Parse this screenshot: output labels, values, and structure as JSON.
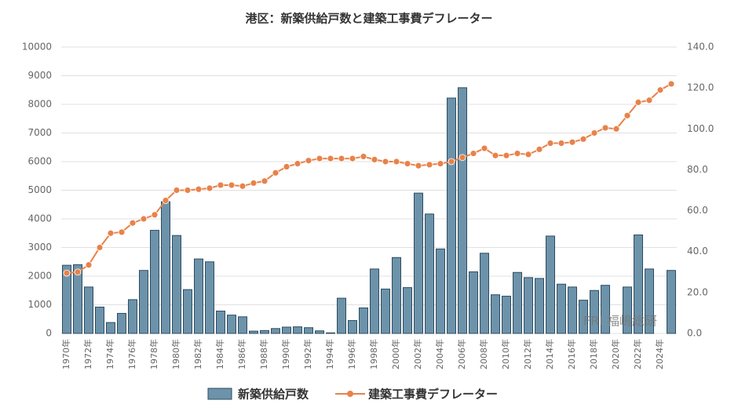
{
  "chart_data": {
    "type": "bar_line",
    "title": "港区：新築供給戸数と建築工事費デフレーター",
    "categories": [
      "1970年",
      null,
      "1972年",
      null,
      "1974年",
      null,
      "1976年",
      null,
      "1978年",
      null,
      "1980年",
      null,
      "1982年",
      null,
      "1984年",
      null,
      "1986年",
      null,
      "1988年",
      null,
      "1990年",
      null,
      "1992年",
      null,
      "1994年",
      null,
      "1996年",
      null,
      "1998年",
      null,
      "2000年",
      null,
      "2002年",
      null,
      "2004年",
      null,
      "2006年",
      null,
      "2008年",
      null,
      "2010年",
      null,
      "2012年",
      null,
      "2014年",
      null,
      "2016年",
      null,
      "2018年",
      null,
      "2020年",
      null,
      "2022年",
      null,
      "2024年",
      null
    ],
    "series": [
      {
        "name": "新築供給戸数",
        "type": "bar",
        "color": "#6d93ab",
        "values": [
          2380,
          2400,
          1620,
          920,
          380,
          700,
          1180,
          2200,
          3600,
          4600,
          3420,
          1530,
          2600,
          2500,
          780,
          640,
          580,
          80,
          100,
          170,
          220,
          230,
          200,
          90,
          20,
          1230,
          450,
          890,
          2250,
          1550,
          2650,
          1600,
          4900,
          4170,
          2950,
          8220,
          8580,
          2150,
          2800,
          1350,
          1300,
          2130,
          1950,
          1920,
          3400,
          1720,
          1620,
          1160,
          1500,
          1680,
          null,
          1620,
          3440,
          2250,
          null,
          2200
        ]
      },
      {
        "name": "建築工事費デフレーター",
        "type": "line",
        "axis": "y2",
        "color": "#e8824a",
        "values": [
          29.5,
          30,
          33.5,
          42,
          49,
          49.5,
          54,
          56,
          58,
          65,
          70,
          70,
          70.5,
          71,
          72.5,
          72.5,
          72,
          73.5,
          74.5,
          78.5,
          81.5,
          83,
          84.5,
          85.5,
          85.5,
          85.5,
          85.5,
          86.5,
          85,
          84,
          84,
          83,
          82,
          82.5,
          83,
          84,
          86,
          88,
          90.5,
          87,
          87,
          88,
          87.5,
          90,
          93,
          93,
          93.5,
          95,
          98,
          100.5,
          100,
          106.5,
          113,
          114,
          119,
          122
        ]
      }
    ],
    "ylim": [
      0,
      10000
    ],
    "yticks": [
      0,
      1000,
      2000,
      3000,
      4000,
      5000,
      6000,
      7000,
      8000,
      9000,
      10000
    ],
    "y2lim": [
      0,
      140
    ],
    "y2ticks": [
      {
        "value": 0,
        "label": "0.0"
      },
      {
        "value": 20,
        "label": "20.0"
      },
      {
        "value": 40,
        "label": "40.0"
      },
      {
        "value": 60,
        "label": "60.0"
      },
      {
        "value": 80,
        "label": "80.0"
      },
      {
        "value": 100,
        "label": "100.0"
      },
      {
        "value": 120,
        "label": "120.0"
      },
      {
        "value": 140,
        "label": "140.0"
      }
    ],
    "grid": true,
    "legend": "bottom",
    "watermark": "FRI 福嶋総研"
  }
}
